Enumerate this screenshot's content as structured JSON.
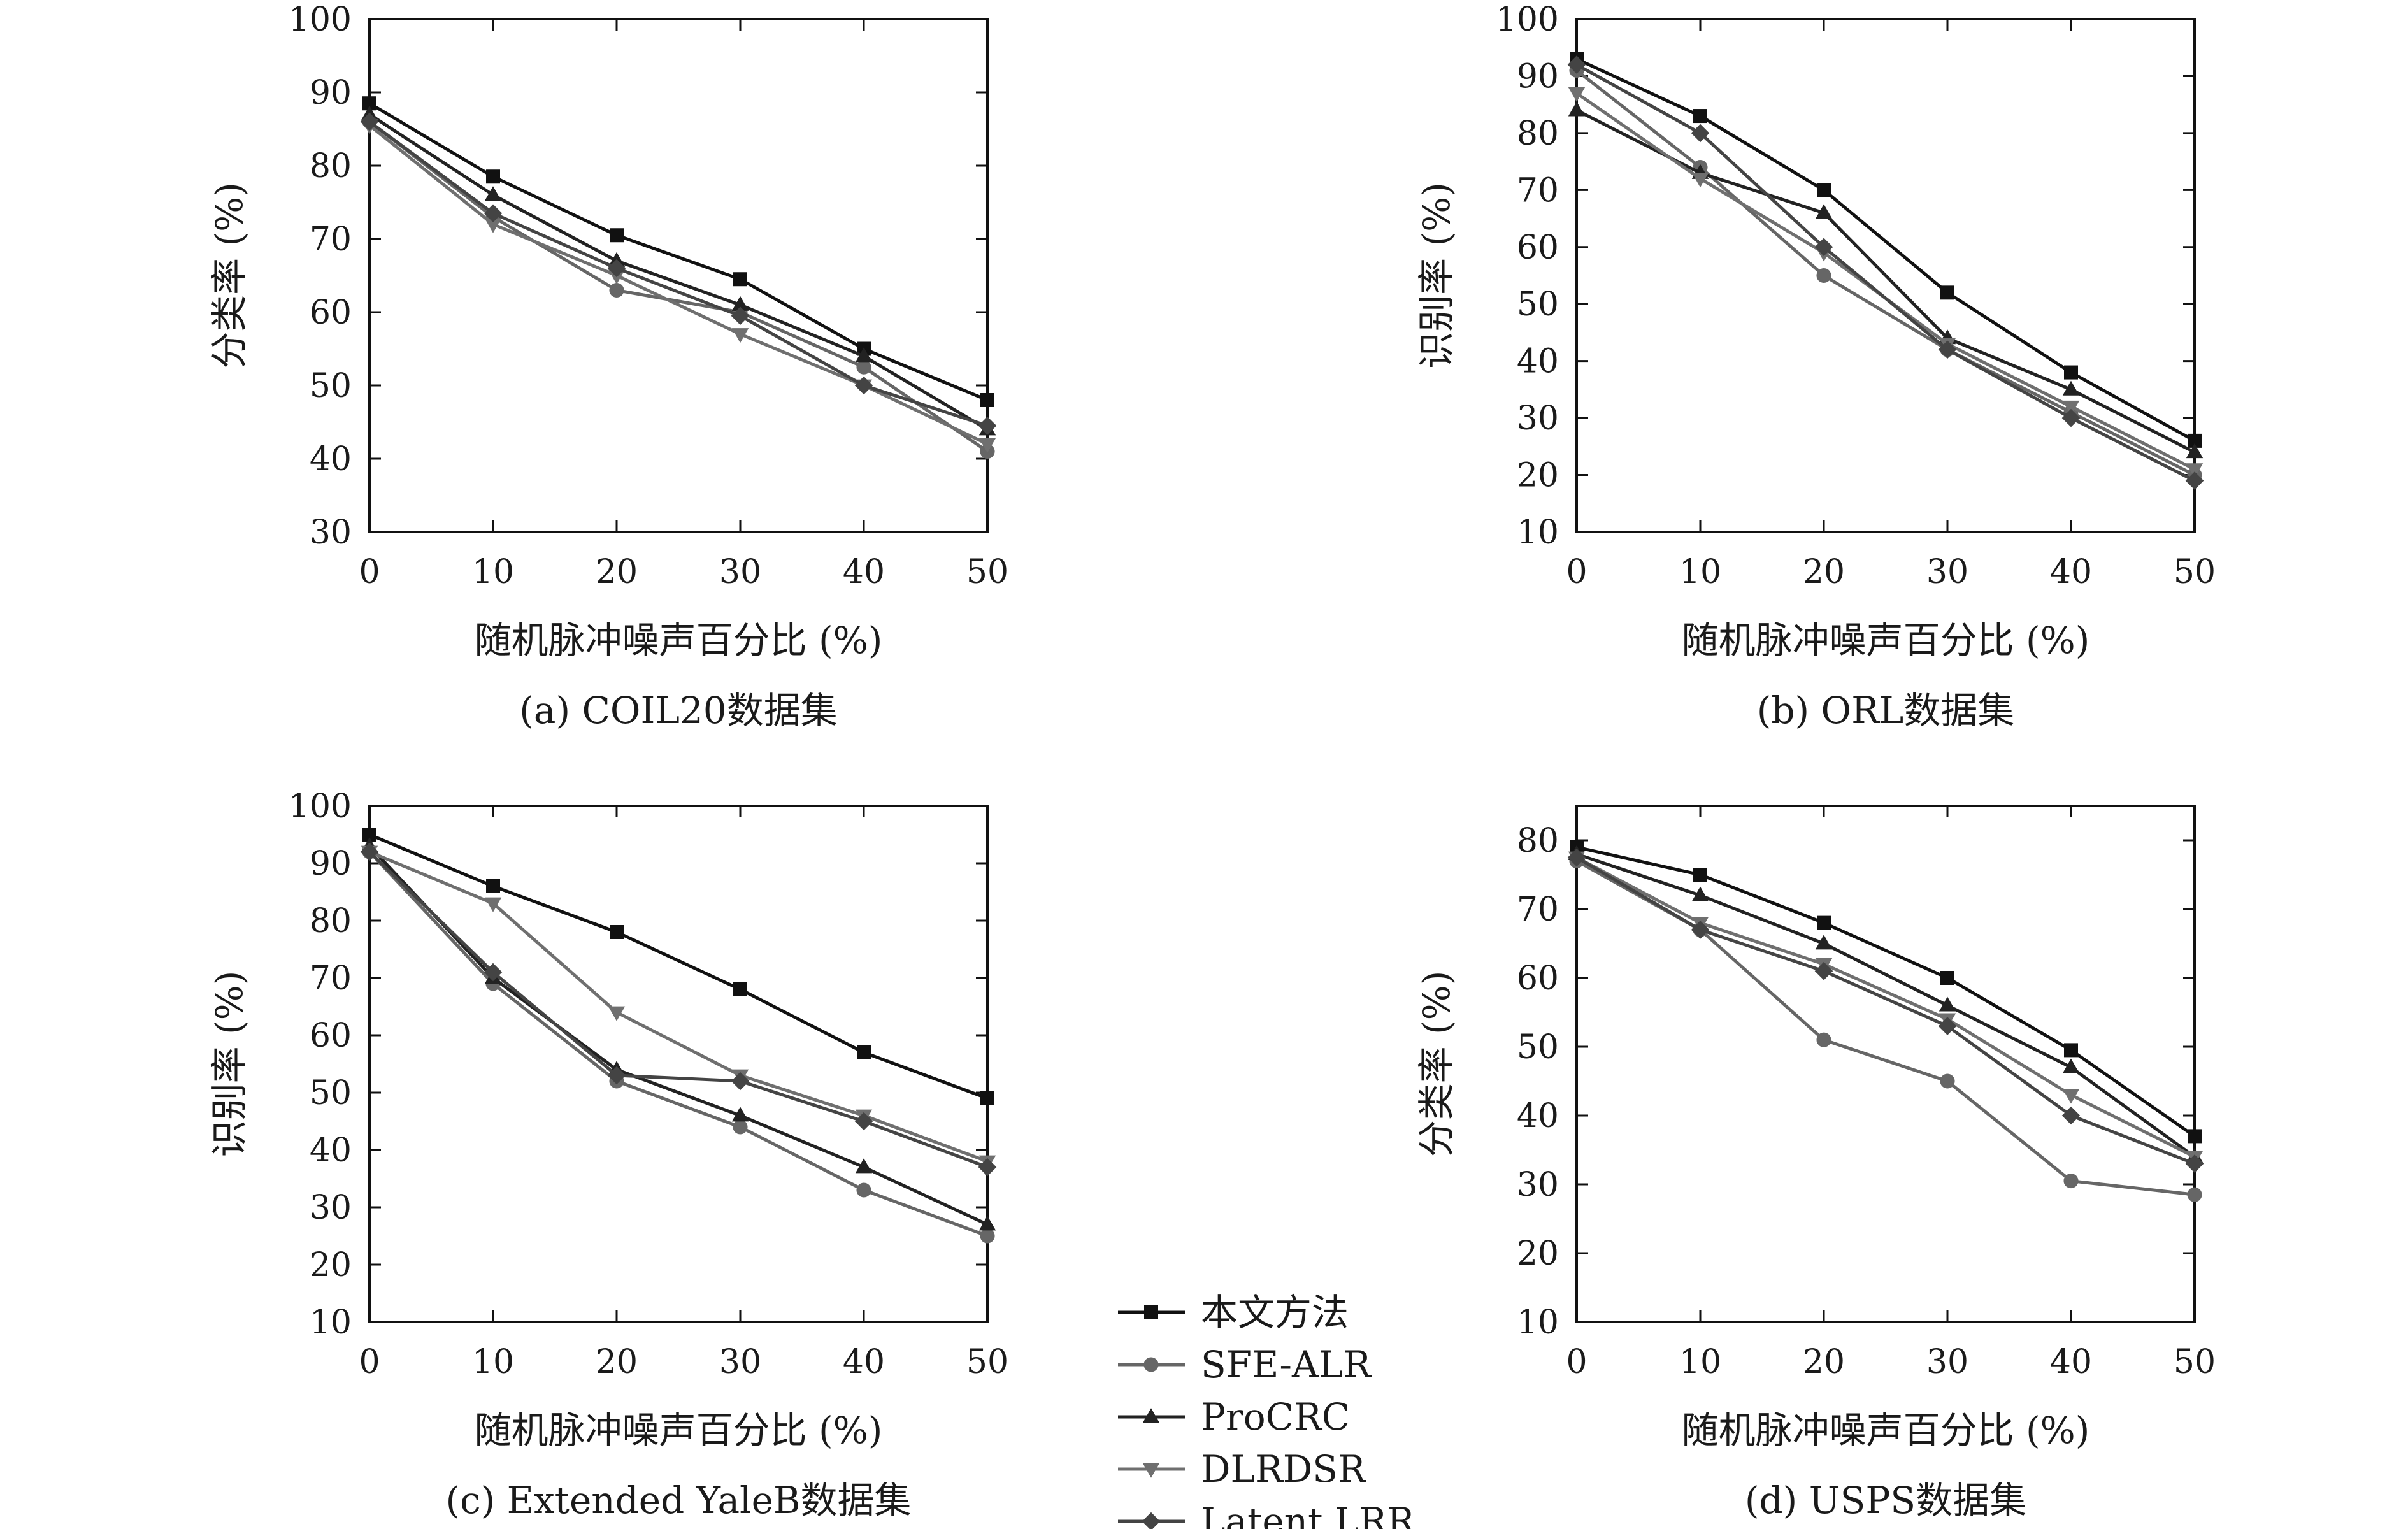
{
  "legend": [
    {
      "name": "本文方法",
      "color": "#111111",
      "marker": "square"
    },
    {
      "name": "SFE-ALR",
      "color": "#666666",
      "marker": "circle"
    },
    {
      "name": "ProCRC",
      "color": "#222222",
      "marker": "triangle-up"
    },
    {
      "name": "DLRDSR",
      "color": "#6f6f6f",
      "marker": "triangle-down"
    },
    {
      "name": "Latent LRR",
      "color": "#444444",
      "marker": "diamond"
    }
  ],
  "chart_data": [
    {
      "type": "line",
      "caption": "(a) COIL20数据集",
      "xlabel": "随机脉冲噪声百分比 (%)",
      "ylabel": "分类率 (%)",
      "x": [
        0,
        10,
        20,
        30,
        40,
        50
      ],
      "xticks": [
        0,
        10,
        20,
        30,
        40,
        50
      ],
      "xlim": [
        0,
        50
      ],
      "yticks": [
        30,
        40,
        50,
        60,
        70,
        80,
        90,
        100
      ],
      "ylim": [
        30,
        100
      ],
      "series": [
        {
          "name": "本文方法",
          "values": [
            88.5,
            78.5,
            70.5,
            64.5,
            55,
            48
          ]
        },
        {
          "name": "SFE-ALR",
          "values": [
            86,
            73,
            63,
            60,
            52.5,
            41
          ]
        },
        {
          "name": "ProCRC",
          "values": [
            87,
            76,
            67,
            61,
            54,
            44
          ]
        },
        {
          "name": "DLRDSR",
          "values": [
            85.5,
            72,
            65,
            57,
            50,
            42
          ]
        },
        {
          "name": "Latent LRR",
          "values": [
            86,
            73.5,
            66,
            59.5,
            50,
            44.5
          ]
        }
      ]
    },
    {
      "type": "line",
      "caption": "(b) ORL数据集",
      "xlabel": "随机脉冲噪声百分比 (%)",
      "ylabel": "识别率 (%)",
      "x": [
        0,
        10,
        20,
        30,
        40,
        50
      ],
      "xticks": [
        0,
        10,
        20,
        30,
        40,
        50
      ],
      "xlim": [
        0,
        50
      ],
      "yticks": [
        10,
        20,
        30,
        40,
        50,
        60,
        70,
        80,
        90,
        100
      ],
      "ylim": [
        10,
        100
      ],
      "series": [
        {
          "name": "本文方法",
          "values": [
            93,
            83,
            70,
            52,
            38,
            26
          ]
        },
        {
          "name": "SFE-ALR",
          "values": [
            91,
            74,
            55,
            42,
            31,
            20
          ]
        },
        {
          "name": "ProCRC",
          "values": [
            84,
            73,
            66,
            44,
            35,
            24
          ]
        },
        {
          "name": "DLRDSR",
          "values": [
            87,
            72,
            59,
            43,
            32,
            21
          ]
        },
        {
          "name": "Latent LRR",
          "values": [
            92,
            80,
            60,
            42,
            30,
            19
          ]
        }
      ]
    },
    {
      "type": "line",
      "caption": "(c) Extended YaleB数据集",
      "xlabel": "随机脉冲噪声百分比 (%)",
      "ylabel": "识别率 (%)",
      "x": [
        0,
        10,
        20,
        30,
        40,
        50
      ],
      "xticks": [
        0,
        10,
        20,
        30,
        40,
        50
      ],
      "xlim": [
        0,
        50
      ],
      "yticks": [
        10,
        20,
        30,
        40,
        50,
        60,
        70,
        80,
        90,
        100
      ],
      "ylim": [
        10,
        100
      ],
      "series": [
        {
          "name": "本文方法",
          "values": [
            95,
            86,
            78,
            68,
            57,
            49
          ]
        },
        {
          "name": "SFE-ALR",
          "values": [
            92,
            69,
            52,
            44,
            33,
            25
          ]
        },
        {
          "name": "ProCRC",
          "values": [
            93,
            70,
            54,
            46,
            37,
            27
          ]
        },
        {
          "name": "DLRDSR",
          "values": [
            92,
            83,
            64,
            53,
            46,
            38
          ]
        },
        {
          "name": "Latent LRR",
          "values": [
            92,
            71,
            53,
            52,
            45,
            37
          ]
        }
      ]
    },
    {
      "type": "line",
      "caption": "(d) USPS数据集",
      "xlabel": "随机脉冲噪声百分比 (%)",
      "ylabel": "分类率 (%)",
      "x": [
        0,
        10,
        20,
        30,
        40,
        50
      ],
      "xticks": [
        0,
        10,
        20,
        30,
        40,
        50
      ],
      "xlim": [
        0,
        50
      ],
      "yticks": [
        10,
        20,
        30,
        40,
        50,
        60,
        70,
        80
      ],
      "ylim": [
        10,
        85
      ],
      "series": [
        {
          "name": "本文方法",
          "values": [
            79,
            75,
            68,
            60,
            49.5,
            37
          ]
        },
        {
          "name": "SFE-ALR",
          "values": [
            77,
            67,
            51,
            45,
            30.5,
            28.5
          ]
        },
        {
          "name": "ProCRC",
          "values": [
            78,
            72,
            65,
            56,
            47,
            34
          ]
        },
        {
          "name": "DLRDSR",
          "values": [
            77.5,
            68,
            62,
            54,
            43,
            34
          ]
        },
        {
          "name": "Latent LRR",
          "values": [
            77.5,
            67,
            61,
            53,
            40,
            33
          ]
        }
      ]
    }
  ]
}
